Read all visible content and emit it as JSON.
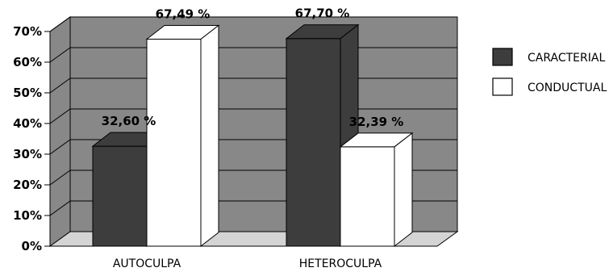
{
  "chart_data": {
    "type": "bar",
    "categories": [
      "AUTOCULPA",
      "HETEROCULPA"
    ],
    "series": [
      {
        "name": "CARACTERIAL",
        "values": [
          32.6,
          67.7
        ],
        "labels": [
          "32,60 %",
          "67,70 %"
        ],
        "color": "#3d3d3d"
      },
      {
        "name": "CONDUCTUAL",
        "values": [
          67.49,
          32.39
        ],
        "labels": [
          "67,49 %",
          "32,39 %"
        ],
        "color": "#ffffff"
      }
    ],
    "y_ticks": [
      "0%",
      "10%",
      "20%",
      "30%",
      "40%",
      "50%",
      "60%",
      "70%"
    ],
    "ylim": [
      0,
      70
    ],
    "grid": true,
    "legend_position": "right",
    "wall_color": "#888888",
    "floor_color": "#d4d4d4"
  }
}
